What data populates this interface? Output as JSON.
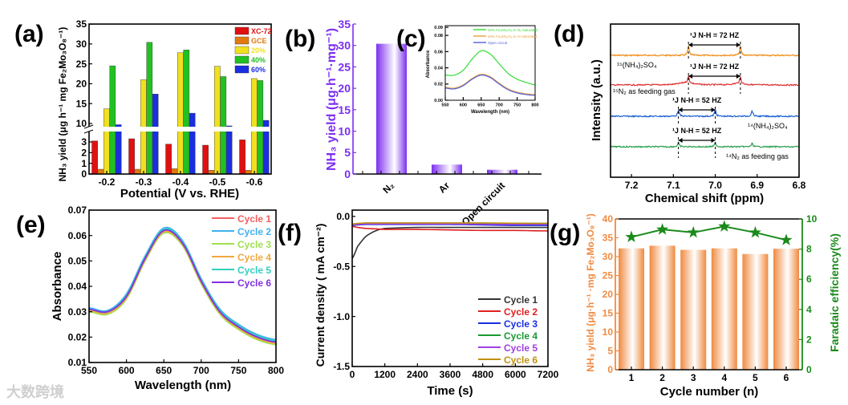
{
  "watermark": "大数跨境",
  "chart_data": [
    {
      "panel": "(a)",
      "type": "bar",
      "xlabel": "Potential (V vs. RHE)",
      "ylabel": "NH₃ yield  (μg h⁻¹ mg Fe₂Mo₃O₈⁻¹)",
      "categories": [
        "-0.2",
        "-0.3",
        "-0.4",
        "-0.5",
        "-0.6"
      ],
      "yticks_upper": [
        10,
        15,
        20,
        25,
        30,
        35
      ],
      "yticks_lower": [
        0,
        1,
        2,
        3
      ],
      "axis_break": [
        3.5,
        9
      ],
      "legend_position": "top-right",
      "series": [
        {
          "name": "XC-72",
          "color": "#e01010",
          "values": [
            3.1,
            3.3,
            2.8,
            2.7,
            3.2
          ]
        },
        {
          "name": "GCE",
          "color": "#e07a10",
          "values": [
            0.45,
            0.45,
            0.5,
            0.35,
            0.35
          ]
        },
        {
          "name": "20%",
          "color": "#f0e020",
          "values": [
            13.7,
            21.0,
            27.8,
            24.4,
            21.3
          ]
        },
        {
          "name": "40%",
          "color": "#22c022",
          "values": [
            24.5,
            30.4,
            28.5,
            21.8,
            20.8
          ]
        },
        {
          "name": "60%",
          "color": "#1a2ee0",
          "values": [
            9.7,
            17.4,
            12.6,
            9.4,
            10.8
          ]
        }
      ]
    },
    {
      "panel": "(b)",
      "type": "bar",
      "ylabel": "NH₃ yield  (μg·h⁻¹·mg⁻¹)",
      "categories": [
        "N₂",
        "Ar",
        "Open circuit"
      ],
      "values": [
        30.4,
        2.2,
        1.0
      ],
      "ylim": [
        0,
        35
      ],
      "yticks": [
        0,
        5,
        10,
        15,
        20,
        25,
        30,
        35
      ],
      "color": "#7b2ff0"
    },
    {
      "panel": "(c)",
      "type": "line",
      "xlabel": "Wavelength (nm)",
      "ylabel": "Absorbance",
      "xlim": [
        550,
        800
      ],
      "xticks": [
        550,
        600,
        650,
        700,
        750,
        800
      ],
      "ylim": [
        0,
        0.092
      ],
      "yticks": [
        "0.00",
        "0.02",
        "0.04",
        "0.06",
        "0.08",
        "0.09"
      ],
      "x": [
        550,
        575,
        600,
        625,
        650,
        675,
        700,
        725,
        750,
        775,
        800
      ],
      "series": [
        {
          "name": "40% Fe₂Mo₃O₈ in N₂-saturated",
          "color": "#33dd33",
          "values": [
            0.031,
            0.031,
            0.037,
            0.051,
            0.061,
            0.057,
            0.045,
            0.033,
            0.026,
            0.022,
            0.019
          ]
        },
        {
          "name": "40% Fe₂Mo₃O₈ in Ar-saturated",
          "color": "#e8a040",
          "values": [
            0.016,
            0.015,
            0.019,
            0.027,
            0.032,
            0.029,
            0.021,
            0.014,
            0.01,
            0.008,
            0.007
          ]
        },
        {
          "name": "Open circuit",
          "color": "#5060e0",
          "values": [
            0.015,
            0.014,
            0.018,
            0.026,
            0.031,
            0.028,
            0.02,
            0.013,
            0.009,
            0.007,
            0.006
          ]
        }
      ]
    },
    {
      "panel": "(d)",
      "type": "line",
      "xlabel": "Chemical shift (ppm)",
      "ylabel": "Intensity (a.u.)",
      "xlim": [
        7.25,
        6.8
      ],
      "xticks": [
        "7.2",
        "7.1",
        "7.0",
        "6.9",
        "6.8"
      ],
      "series": [
        {
          "name": "¹⁵(NH₄)₂SO₄",
          "color": "#f08a10",
          "peaks": [
            7.064,
            6.94
          ],
          "coupling": "¹J N-H = 72 HZ"
        },
        {
          "name": "¹⁵N₂ as feeding gas",
          "color": "#e03030",
          "peaks": [
            7.064,
            6.94
          ],
          "coupling": "¹J N-H = 72 HZ"
        },
        {
          "name": "¹⁴(NH₄)₂SO₄",
          "color": "#1a5fd0",
          "peaks": [
            7.088,
            7.0,
            6.912
          ],
          "coupling": "¹J N-H = 52 HZ"
        },
        {
          "name": "¹⁴N₂ as feeding gas",
          "color": "#2aa050",
          "peaks": [
            7.088,
            7.0,
            6.912
          ],
          "coupling": "¹J N-H = 52 HZ"
        }
      ]
    },
    {
      "panel": "(e)",
      "type": "line",
      "xlabel": "Wavelength (nm)",
      "ylabel": "Absorbance",
      "xlim": [
        550,
        800
      ],
      "xticks": [
        550,
        600,
        650,
        700,
        750,
        800
      ],
      "ylim": [
        0.01,
        0.07
      ],
      "yticks": [
        "0.01",
        "0.02",
        "0.03",
        "0.04",
        "0.05",
        "0.06",
        "0.07"
      ],
      "x": [
        550,
        575,
        600,
        625,
        650,
        675,
        700,
        725,
        750,
        775,
        800
      ],
      "legend_position": "top-right",
      "series": [
        {
          "name": "Cycle 1",
          "color": "#f06060",
          "values": [
            0.031,
            0.03,
            0.036,
            0.051,
            0.062,
            0.057,
            0.042,
            0.03,
            0.024,
            0.02,
            0.018
          ]
        },
        {
          "name": "Cycle 2",
          "color": "#40b0f0",
          "values": [
            0.0315,
            0.0305,
            0.037,
            0.052,
            0.063,
            0.058,
            0.043,
            0.031,
            0.025,
            0.021,
            0.019
          ]
        },
        {
          "name": "Cycle 3",
          "color": "#a0e050",
          "values": [
            0.03,
            0.029,
            0.035,
            0.05,
            0.061,
            0.056,
            0.041,
            0.029,
            0.023,
            0.019,
            0.017
          ]
        },
        {
          "name": "Cycle 4",
          "color": "#f0a840",
          "values": [
            0.0305,
            0.0295,
            0.0355,
            0.0505,
            0.0615,
            0.0565,
            0.0415,
            0.0295,
            0.0235,
            0.0195,
            0.0175
          ]
        },
        {
          "name": "Cycle 5",
          "color": "#30d0c0",
          "values": [
            0.031,
            0.03,
            0.0365,
            0.0515,
            0.0625,
            0.0575,
            0.0425,
            0.0305,
            0.0245,
            0.0205,
            0.0185
          ]
        },
        {
          "name": "Cycle 6",
          "color": "#8030e0",
          "values": [
            0.031,
            0.03,
            0.036,
            0.051,
            0.062,
            0.057,
            0.042,
            0.03,
            0.024,
            0.02,
            0.018
          ]
        }
      ]
    },
    {
      "panel": "(f)",
      "type": "line",
      "xlabel": "Time (s)",
      "ylabel": "Current density ( mA cm⁻²)",
      "xlim": [
        0,
        7200
      ],
      "xticks": [
        0,
        1200,
        2400,
        3600,
        4800,
        6000,
        7200
      ],
      "ylim": [
        -1.5,
        0.063
      ],
      "yticks": [
        "0.0",
        "-0.5",
        "-1.0",
        "-1.5"
      ],
      "x": [
        0,
        200,
        500,
        900,
        1200,
        2400,
        3600,
        4800,
        6000,
        7200
      ],
      "legend_position": "bottom-right",
      "series": [
        {
          "name": "Cycle 1",
          "color": "#333333",
          "values": [
            -0.42,
            -0.3,
            -0.2,
            -0.14,
            -0.12,
            -0.11,
            -0.11,
            -0.11,
            -0.11,
            -0.11
          ]
        },
        {
          "name": "Cycle 2",
          "color": "#e02020",
          "values": [
            -0.1,
            -0.11,
            -0.12,
            -0.125,
            -0.13,
            -0.13,
            -0.135,
            -0.14,
            -0.14,
            -0.145
          ]
        },
        {
          "name": "Cycle 3",
          "color": "#1a2ee0",
          "values": [
            -0.09,
            -0.085,
            -0.08,
            -0.08,
            -0.08,
            -0.08,
            -0.08,
            -0.085,
            -0.09,
            -0.09
          ]
        },
        {
          "name": "Cycle 4",
          "color": "#1a9a30",
          "values": [
            -0.08,
            -0.075,
            -0.07,
            -0.07,
            -0.07,
            -0.07,
            -0.07,
            -0.07,
            -0.07,
            -0.07
          ]
        },
        {
          "name": "Cycle 5",
          "color": "#a040e0",
          "values": [
            -0.085,
            -0.08,
            -0.075,
            -0.075,
            -0.075,
            -0.075,
            -0.075,
            -0.078,
            -0.08,
            -0.08
          ]
        },
        {
          "name": "Cycle 6",
          "color": "#c09010",
          "values": [
            -0.075,
            -0.07,
            -0.065,
            -0.065,
            -0.065,
            -0.065,
            -0.065,
            -0.065,
            -0.068,
            -0.07
          ]
        }
      ]
    },
    {
      "panel": "(g)",
      "type": "bar",
      "xlabel": "Cycle number (n)",
      "ylabel": "NH₃ yield  (μg·h⁻¹ ·mg Fe₂Mo₃O₈⁻¹)",
      "ylabel_right": "Faradaic efficiency(%)",
      "categories": [
        "1",
        "2",
        "3",
        "4",
        "5",
        "6"
      ],
      "ylim": [
        0,
        40
      ],
      "yticks": [
        0,
        5,
        10,
        15,
        20,
        25,
        30,
        35,
        40
      ],
      "ylim_right": [
        0,
        10
      ],
      "yticks_right": [
        0,
        2,
        4,
        6,
        8,
        10
      ],
      "series": [
        {
          "name": "NH₃ yield",
          "type": "bar",
          "color": "#f08a40",
          "values": [
            32.2,
            32.9,
            31.8,
            32.2,
            30.7,
            32.1
          ]
        },
        {
          "name": "Faradaic efficiency",
          "type": "line-star",
          "color": "#1a8a1a",
          "values": [
            8.8,
            9.3,
            9.1,
            9.5,
            9.1,
            8.6
          ]
        }
      ]
    }
  ],
  "panel_labels": [
    "(a)",
    "(b)",
    "(c)",
    "(d)",
    "(e)",
    "(f)",
    "(g)"
  ]
}
